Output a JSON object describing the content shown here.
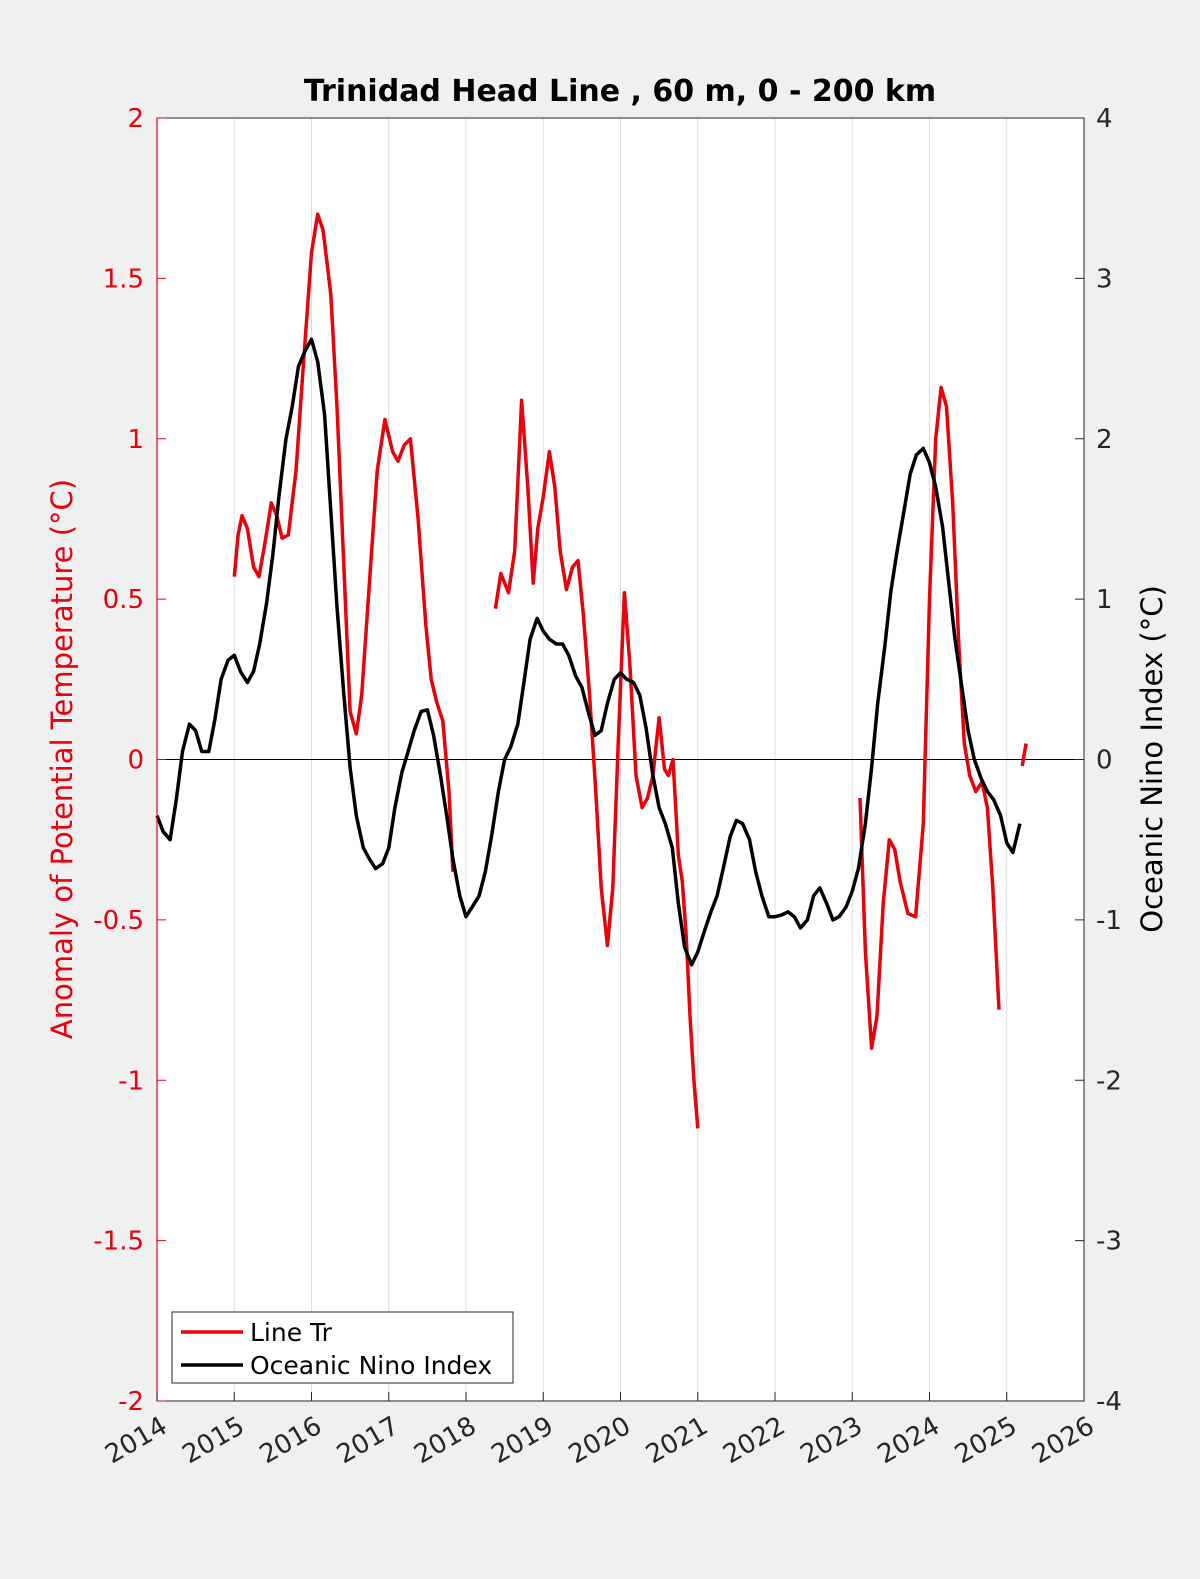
{
  "chart_data": {
    "type": "line",
    "title": "Trinidad Head Line , 60 m, 0 - 200 km",
    "xlabel": "",
    "ylabel_left": "Anomaly of Potential Temperature (°C)",
    "ylabel_right": "Oceanic Nino Index (°C)",
    "xlim": [
      2014,
      2026
    ],
    "ylim_left": [
      -2,
      2
    ],
    "ylim_right": [
      -4,
      4
    ],
    "x_ticks": [
      "2014",
      "2015",
      "2016",
      "2017",
      "2018",
      "2019",
      "2020",
      "2021",
      "2022",
      "2023",
      "2024",
      "2025",
      "2026"
    ],
    "y_ticks_left": [
      "2",
      "1.5",
      "1",
      "0.5",
      "0",
      "-0.5",
      "-1",
      "-1.5",
      "-2"
    ],
    "y_ticks_right": [
      "4",
      "3",
      "2",
      "1",
      "0",
      "-1",
      "-2",
      "-3",
      "-4"
    ],
    "grid": "vertical",
    "zero_line": true,
    "legend_position": "bottom-left",
    "colors": {
      "line_tr": "#e8000b",
      "oni": "#000000",
      "left_axis": "#e8000b",
      "right_axis": "#000000"
    },
    "series": [
      {
        "name": "Line Tr",
        "axis": "left",
        "segments": [
          [
            [
              2015.0,
              0.57
            ],
            [
              2015.05,
              0.7
            ],
            [
              2015.1,
              0.76
            ],
            [
              2015.17,
              0.72
            ],
            [
              2015.25,
              0.6
            ],
            [
              2015.32,
              0.57
            ],
            [
              2015.4,
              0.68
            ],
            [
              2015.48,
              0.8
            ],
            [
              2015.55,
              0.76
            ],
            [
              2015.62,
              0.69
            ],
            [
              2015.7,
              0.7
            ],
            [
              2015.8,
              0.9
            ],
            [
              2015.9,
              1.25
            ],
            [
              2016.0,
              1.58
            ],
            [
              2016.08,
              1.7
            ],
            [
              2016.15,
              1.65
            ],
            [
              2016.25,
              1.45
            ],
            [
              2016.33,
              1.1
            ],
            [
              2016.42,
              0.6
            ],
            [
              2016.5,
              0.15
            ],
            [
              2016.58,
              0.08
            ],
            [
              2016.65,
              0.2
            ],
            [
              2016.75,
              0.55
            ],
            [
              2016.85,
              0.9
            ],
            [
              2016.95,
              1.06
            ],
            [
              2017.05,
              0.96
            ],
            [
              2017.12,
              0.93
            ],
            [
              2017.2,
              0.98
            ],
            [
              2017.28,
              1.0
            ],
            [
              2017.38,
              0.75
            ],
            [
              2017.48,
              0.42
            ],
            [
              2017.55,
              0.25
            ],
            [
              2017.62,
              0.18
            ],
            [
              2017.7,
              0.12
            ],
            [
              2017.78,
              -0.1
            ],
            [
              2017.83,
              -0.35
            ]
          ],
          [
            [
              2018.38,
              0.47
            ],
            [
              2018.45,
              0.58
            ],
            [
              2018.55,
              0.52
            ],
            [
              2018.63,
              0.65
            ],
            [
              2018.72,
              1.12
            ],
            [
              2018.8,
              0.85
            ],
            [
              2018.87,
              0.55
            ],
            [
              2018.93,
              0.72
            ],
            [
              2019.0,
              0.82
            ],
            [
              2019.08,
              0.96
            ],
            [
              2019.15,
              0.85
            ],
            [
              2019.22,
              0.65
            ],
            [
              2019.3,
              0.53
            ],
            [
              2019.38,
              0.6
            ],
            [
              2019.45,
              0.62
            ],
            [
              2019.52,
              0.45
            ],
            [
              2019.6,
              0.2
            ],
            [
              2019.68,
              -0.1
            ],
            [
              2019.75,
              -0.4
            ],
            [
              2019.83,
              -0.58
            ],
            [
              2019.9,
              -0.4
            ],
            [
              2019.97,
              0.05
            ],
            [
              2020.05,
              0.52
            ],
            [
              2020.12,
              0.3
            ],
            [
              2020.2,
              -0.05
            ],
            [
              2020.28,
              -0.15
            ],
            [
              2020.35,
              -0.12
            ],
            [
              2020.42,
              -0.05
            ],
            [
              2020.5,
              0.13
            ],
            [
              2020.57,
              -0.03
            ],
            [
              2020.62,
              -0.05
            ],
            [
              2020.68,
              0.0
            ],
            [
              2020.75,
              -0.3
            ],
            [
              2020.8,
              -0.38
            ],
            [
              2020.85,
              -0.55
            ],
            [
              2020.9,
              -0.8
            ],
            [
              2020.95,
              -1.0
            ],
            [
              2021.0,
              -1.15
            ]
          ],
          [
            [
              2023.1,
              -0.12
            ],
            [
              2023.17,
              -0.6
            ],
            [
              2023.25,
              -0.9
            ],
            [
              2023.32,
              -0.8
            ],
            [
              2023.4,
              -0.45
            ],
            [
              2023.48,
              -0.25
            ],
            [
              2023.55,
              -0.28
            ],
            [
              2023.62,
              -0.38
            ],
            [
              2023.72,
              -0.48
            ],
            [
              2023.82,
              -0.49
            ],
            [
              2023.92,
              -0.2
            ],
            [
              2024.0,
              0.5
            ],
            [
              2024.08,
              1.0
            ],
            [
              2024.15,
              1.16
            ],
            [
              2024.22,
              1.1
            ],
            [
              2024.3,
              0.8
            ],
            [
              2024.38,
              0.35
            ],
            [
              2024.45,
              0.05
            ],
            [
              2024.52,
              -0.05
            ],
            [
              2024.6,
              -0.1
            ],
            [
              2024.68,
              -0.07
            ],
            [
              2024.75,
              -0.15
            ],
            [
              2024.82,
              -0.4
            ],
            [
              2024.9,
              -0.78
            ]
          ],
          [
            [
              2025.2,
              -0.02
            ],
            [
              2025.25,
              0.05
            ]
          ]
        ]
      },
      {
        "name": "Oceanic Nino Index",
        "axis": "right",
        "segments": [
          [
            [
              2014.0,
              -0.35
            ],
            [
              2014.08,
              -0.45
            ],
            [
              2014.17,
              -0.5
            ],
            [
              2014.25,
              -0.25
            ],
            [
              2014.33,
              0.05
            ],
            [
              2014.42,
              0.22
            ],
            [
              2014.5,
              0.18
            ],
            [
              2014.58,
              0.05
            ],
            [
              2014.67,
              0.05
            ],
            [
              2014.75,
              0.25
            ],
            [
              2014.83,
              0.5
            ],
            [
              2014.92,
              0.62
            ],
            [
              2015.0,
              0.65
            ],
            [
              2015.08,
              0.55
            ],
            [
              2015.17,
              0.48
            ],
            [
              2015.25,
              0.55
            ],
            [
              2015.33,
              0.72
            ],
            [
              2015.42,
              0.98
            ],
            [
              2015.5,
              1.28
            ],
            [
              2015.58,
              1.65
            ],
            [
              2015.67,
              2.0
            ],
            [
              2015.75,
              2.2
            ],
            [
              2015.83,
              2.45
            ],
            [
              2015.92,
              2.55
            ],
            [
              2016.0,
              2.62
            ],
            [
              2016.08,
              2.48
            ],
            [
              2016.17,
              2.15
            ],
            [
              2016.25,
              1.55
            ],
            [
              2016.33,
              0.95
            ],
            [
              2016.42,
              0.4
            ],
            [
              2016.5,
              -0.05
            ],
            [
              2016.58,
              -0.35
            ],
            [
              2016.67,
              -0.55
            ],
            [
              2016.75,
              -0.62
            ],
            [
              2016.83,
              -0.68
            ],
            [
              2016.92,
              -0.65
            ],
            [
              2017.0,
              -0.55
            ],
            [
              2017.08,
              -0.3
            ],
            [
              2017.17,
              -0.08
            ],
            [
              2017.25,
              0.05
            ],
            [
              2017.33,
              0.18
            ],
            [
              2017.42,
              0.3
            ],
            [
              2017.5,
              0.31
            ],
            [
              2017.58,
              0.15
            ],
            [
              2017.67,
              -0.1
            ],
            [
              2017.75,
              -0.35
            ],
            [
              2017.83,
              -0.62
            ],
            [
              2017.92,
              -0.85
            ],
            [
              2018.0,
              -0.98
            ],
            [
              2018.08,
              -0.92
            ],
            [
              2018.17,
              -0.85
            ],
            [
              2018.25,
              -0.7
            ],
            [
              2018.33,
              -0.48
            ],
            [
              2018.42,
              -0.2
            ],
            [
              2018.5,
              0.0
            ],
            [
              2018.58,
              0.08
            ],
            [
              2018.67,
              0.22
            ],
            [
              2018.75,
              0.48
            ],
            [
              2018.83,
              0.75
            ],
            [
              2018.92,
              0.88
            ],
            [
              2019.0,
              0.8
            ],
            [
              2019.08,
              0.75
            ],
            [
              2019.17,
              0.72
            ],
            [
              2019.25,
              0.72
            ],
            [
              2019.33,
              0.65
            ],
            [
              2019.42,
              0.52
            ],
            [
              2019.5,
              0.45
            ],
            [
              2019.58,
              0.3
            ],
            [
              2019.67,
              0.15
            ],
            [
              2019.75,
              0.18
            ],
            [
              2019.83,
              0.35
            ],
            [
              2019.92,
              0.5
            ],
            [
              2020.0,
              0.54
            ],
            [
              2020.08,
              0.5
            ],
            [
              2020.17,
              0.48
            ],
            [
              2020.25,
              0.4
            ],
            [
              2020.33,
              0.2
            ],
            [
              2020.42,
              -0.1
            ],
            [
              2020.5,
              -0.3
            ],
            [
              2020.58,
              -0.4
            ],
            [
              2020.67,
              -0.55
            ],
            [
              2020.75,
              -0.9
            ],
            [
              2020.83,
              -1.17
            ],
            [
              2020.92,
              -1.28
            ],
            [
              2021.0,
              -1.2
            ],
            [
              2021.08,
              -1.08
            ],
            [
              2021.17,
              -0.95
            ],
            [
              2021.25,
              -0.85
            ],
            [
              2021.33,
              -0.68
            ],
            [
              2021.42,
              -0.48
            ],
            [
              2021.5,
              -0.38
            ],
            [
              2021.58,
              -0.4
            ],
            [
              2021.67,
              -0.5
            ],
            [
              2021.75,
              -0.7
            ],
            [
              2021.83,
              -0.85
            ],
            [
              2021.92,
              -0.98
            ],
            [
              2022.0,
              -0.98
            ],
            [
              2022.08,
              -0.97
            ],
            [
              2022.17,
              -0.95
            ],
            [
              2022.25,
              -0.98
            ],
            [
              2022.33,
              -1.05
            ],
            [
              2022.42,
              -1.0
            ],
            [
              2022.5,
              -0.85
            ],
            [
              2022.58,
              -0.8
            ],
            [
              2022.67,
              -0.9
            ],
            [
              2022.75,
              -1.0
            ],
            [
              2022.83,
              -0.98
            ],
            [
              2022.92,
              -0.92
            ],
            [
              2023.0,
              -0.82
            ],
            [
              2023.08,
              -0.68
            ],
            [
              2023.17,
              -0.4
            ],
            [
              2023.25,
              -0.05
            ],
            [
              2023.33,
              0.35
            ],
            [
              2023.42,
              0.7
            ],
            [
              2023.5,
              1.05
            ],
            [
              2023.58,
              1.3
            ],
            [
              2023.67,
              1.55
            ],
            [
              2023.75,
              1.78
            ],
            [
              2023.83,
              1.9
            ],
            [
              2023.92,
              1.94
            ],
            [
              2024.0,
              1.85
            ],
            [
              2024.08,
              1.7
            ],
            [
              2024.17,
              1.45
            ],
            [
              2024.25,
              1.1
            ],
            [
              2024.33,
              0.75
            ],
            [
              2024.42,
              0.45
            ],
            [
              2024.5,
              0.18
            ],
            [
              2024.58,
              0.0
            ],
            [
              2024.67,
              -0.12
            ],
            [
              2024.75,
              -0.2
            ],
            [
              2024.83,
              -0.25
            ],
            [
              2024.92,
              -0.35
            ],
            [
              2025.0,
              -0.52
            ],
            [
              2025.08,
              -0.58
            ],
            [
              2025.17,
              -0.4
            ]
          ]
        ]
      }
    ]
  }
}
